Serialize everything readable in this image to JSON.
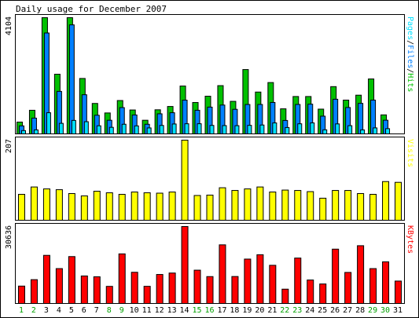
{
  "colors": {
    "background": "#ffffff",
    "frame": "#000000",
    "hits": "#00c000",
    "files": "#0080ff",
    "pages": "#00e0ff",
    "visits": "#ffff00",
    "kbytes": "#ff0000",
    "weekend_label": "#00a000",
    "weekday_label": "#000000"
  },
  "chart_data": {
    "type": "bar",
    "title": "Daily usage for December 2007",
    "categories": [
      "1",
      "2",
      "3",
      "4",
      "5",
      "6",
      "7",
      "8",
      "9",
      "10",
      "11",
      "12",
      "13",
      "14",
      "15",
      "16",
      "17",
      "18",
      "19",
      "20",
      "21",
      "22",
      "23",
      "24",
      "25",
      "26",
      "27",
      "28",
      "29",
      "30",
      "31"
    ],
    "weekend_days": [
      "1",
      "2",
      "8",
      "9",
      "15",
      "16",
      "22",
      "23",
      "29",
      "30"
    ],
    "panels": [
      {
        "name": "hits-files-pages",
        "ymax_label": "4104",
        "ylim": [
          0,
          4104
        ],
        "legend": [
          "Pages",
          "/",
          "Files",
          "/",
          "Hits"
        ],
        "series": [
          {
            "name": "Hits",
            "color_key": "hits",
            "values": [
              417,
              834,
              4104,
              2107,
              4104,
              1957,
              1075,
              739,
              1178,
              844,
              481,
              851,
              968,
              1690,
              1108,
              1331,
              1704,
              1149,
              2272,
              1477,
              1813,
              885,
              1320,
              1320,
              874,
              1669,
              1193,
              1367,
              1940,
              671,
              0
            ]
          },
          {
            "name": "Files",
            "color_key": "files",
            "values": [
              283,
              557,
              3563,
              1501,
              3850,
              1382,
              658,
              481,
              928,
              668,
              339,
              709,
              747,
              1191,
              834,
              945,
              1018,
              867,
              1038,
              1039,
              1110,
              474,
              1039,
              1049,
              625,
              1223,
              931,
              1077,
              1193,
              482,
              0
            ]
          },
          {
            "name": "Pages",
            "color_key": "pages",
            "values": [
              117,
              141,
              747,
              372,
              476,
              430,
              286,
              231,
              340,
              283,
              210,
              298,
              349,
              357,
              358,
              299,
              293,
              290,
              301,
              313,
              387,
              224,
              356,
              388,
              144,
              352,
              290,
              141,
              211,
              184,
              0
            ]
          }
        ]
      },
      {
        "name": "visits",
        "ymax_label": "207",
        "ylim": [
          0,
          207
        ],
        "legend": [
          "Visits"
        ],
        "series": [
          {
            "name": "Visits",
            "color_key": "visits",
            "values": [
              67,
              86,
              81,
              79,
              69,
              63,
              75,
              71,
              67,
              73,
              71,
              70,
              73,
              207,
              64,
              65,
              84,
              77,
              81,
              86,
              73,
              78,
              77,
              74,
              57,
              77,
              77,
              69,
              67,
              100,
              98
            ]
          }
        ]
      },
      {
        "name": "kbytes",
        "ymax_label": "30636",
        "ylim": [
          0,
          30636
        ],
        "legend": [
          "KBytes"
        ],
        "series": [
          {
            "name": "KBytes",
            "color_key": "kbytes",
            "values": [
              6926,
              9489,
              19162,
              13890,
              18675,
              10956,
              10625,
              6817,
              19751,
              12422,
              6837,
              11548,
              12122,
              30636,
              13265,
              10707,
              23346,
              10739,
              17676,
              19410,
              15202,
              5704,
              18085,
              9349,
              7766,
              21637,
              12364,
              23008,
              13890,
              16581,
              8928
            ]
          }
        ]
      }
    ]
  }
}
